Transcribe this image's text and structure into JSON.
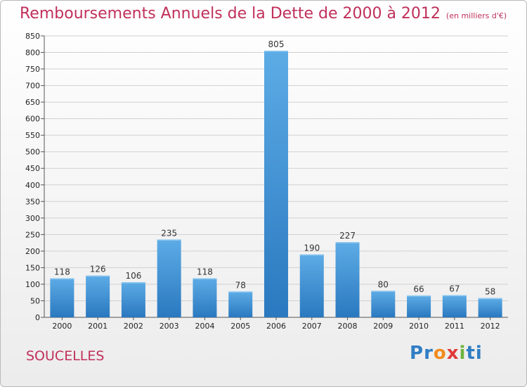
{
  "title": "Remboursements Annuels de la Dette de 2000 à 2012",
  "subtitle": "(en milliers d'€)",
  "place": "SOUCELLES",
  "logo": {
    "text": "Proxiti",
    "letters": [
      "P",
      "r",
      "o",
      "x",
      "i",
      "t",
      "i"
    ],
    "colors": [
      "#2f7ec4",
      "#2f7ec4",
      "#f28c1e",
      "#e03a3a",
      "#6fb33f",
      "#2f7ec4",
      "#2f7ec4"
    ]
  },
  "colors": {
    "bar_top": "#5dace6",
    "bar_bottom": "#2a78bf",
    "title": "#c0305a"
  },
  "chart_data": {
    "type": "bar",
    "categories": [
      "2000",
      "2001",
      "2002",
      "2003",
      "2004",
      "2005",
      "2006",
      "2007",
      "2008",
      "2009",
      "2010",
      "2011",
      "2012"
    ],
    "values": [
      118,
      126,
      106,
      235,
      118,
      78,
      805,
      190,
      227,
      80,
      66,
      67,
      58
    ],
    "title": "Remboursements Annuels de la Dette de 2000 à 2012",
    "ylim": [
      0,
      850
    ],
    "yticks": [
      0,
      50,
      100,
      150,
      200,
      250,
      300,
      350,
      400,
      450,
      500,
      550,
      600,
      650,
      700,
      750,
      800,
      850
    ],
    "grid": true
  }
}
